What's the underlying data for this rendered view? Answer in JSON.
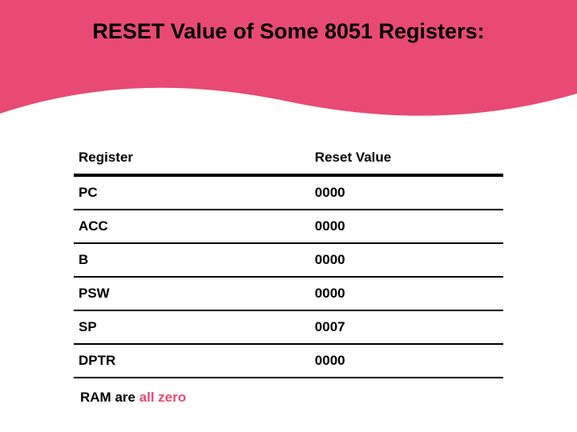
{
  "banner": {
    "bg_color": "#e84a73",
    "title": "RESET Value of Some 8051 Registers:",
    "title_color": "#000000",
    "title_fontsize": 27
  },
  "table": {
    "header_fontsize": 17,
    "cell_fontsize": 17,
    "col_widths": [
      "55%",
      "45%"
    ],
    "columns": [
      "Register",
      "Reset Value"
    ],
    "rows": [
      [
        "PC",
        "0000"
      ],
      [
        "ACC",
        "0000"
      ],
      [
        "B",
        "0000"
      ],
      [
        "PSW",
        "0000"
      ],
      [
        "SP",
        "0007"
      ],
      [
        "DPTR",
        "0000"
      ]
    ],
    "header_rule_color": "#000000",
    "row_rule_color": "#000000"
  },
  "footnote": {
    "pretext": "RAM are ",
    "accent_text": "all zero",
    "fontsize": 17,
    "accent_color": "#e84a73"
  }
}
